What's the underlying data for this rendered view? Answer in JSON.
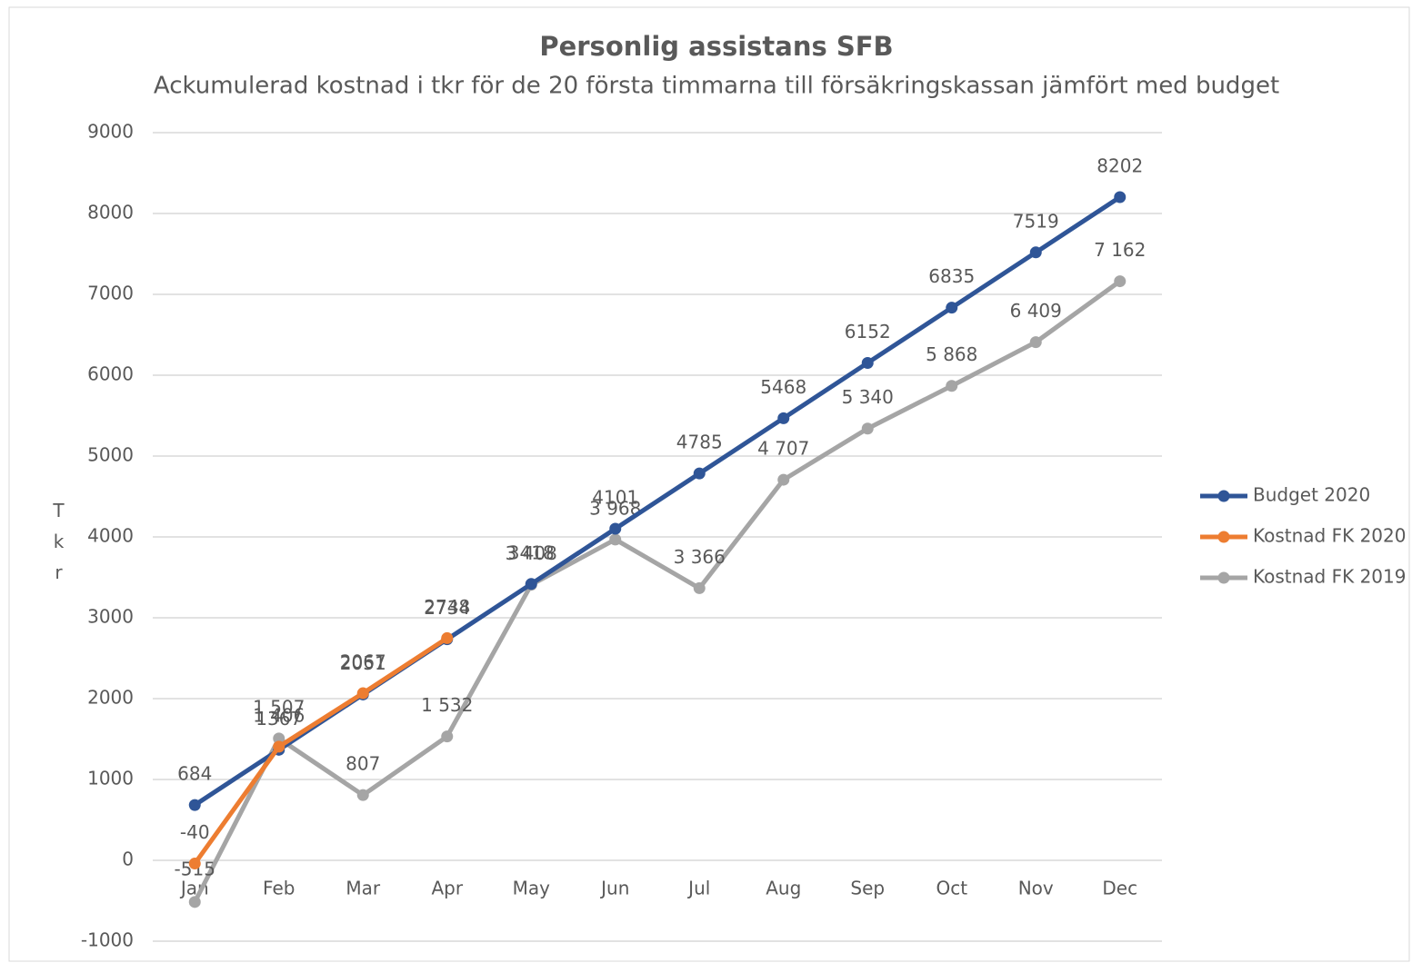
{
  "chart_data": {
    "type": "line",
    "title": "Personlig assistans SFB",
    "subtitle": "Ackumulerad kostnad i tkr för de 20 första timmarna till försäkringskassan jämfört med budget",
    "y_label": "Tkr",
    "categories": [
      "Jan",
      "Feb",
      "Mar",
      "Apr",
      "May",
      "Jun",
      "Jul",
      "Aug",
      "Sep",
      "Oct",
      "Nov",
      "Dec"
    ],
    "series": [
      {
        "name": "Budget 2020",
        "color": "#2f5597",
        "values": [
          684,
          1367,
          2051,
          2734,
          3418,
          4101,
          4785,
          5468,
          6152,
          6835,
          7519,
          8202
        ]
      },
      {
        "name": "Kostnad FK 2020",
        "color": "#ed7d31",
        "values": [
          -40,
          1406,
          2067,
          2748,
          null,
          null,
          null,
          null,
          null,
          null,
          null,
          null
        ],
        "value_labels": [
          "-40",
          "1 406",
          "2067",
          "2748",
          null,
          null,
          null,
          null,
          null,
          null,
          null,
          null
        ]
      },
      {
        "name": "Kostnad FK 2019",
        "color": "#a5a5a5",
        "values": [
          -515,
          1507,
          807,
          1532,
          3408,
          3968,
          3366,
          4707,
          5340,
          5868,
          6409,
          7162
        ],
        "value_labels": [
          "-515",
          "1 507",
          "807",
          "1 532",
          "3 408",
          "3 968",
          "3 366",
          "4 707",
          "5 340",
          "5 868",
          "6 409",
          "7 162"
        ]
      }
    ],
    "ylim": [
      -1000,
      9000
    ],
    "yticks": [
      -1000,
      0,
      1000,
      2000,
      3000,
      4000,
      5000,
      6000,
      7000,
      8000,
      9000
    ],
    "grid": true,
    "legend": "right"
  }
}
